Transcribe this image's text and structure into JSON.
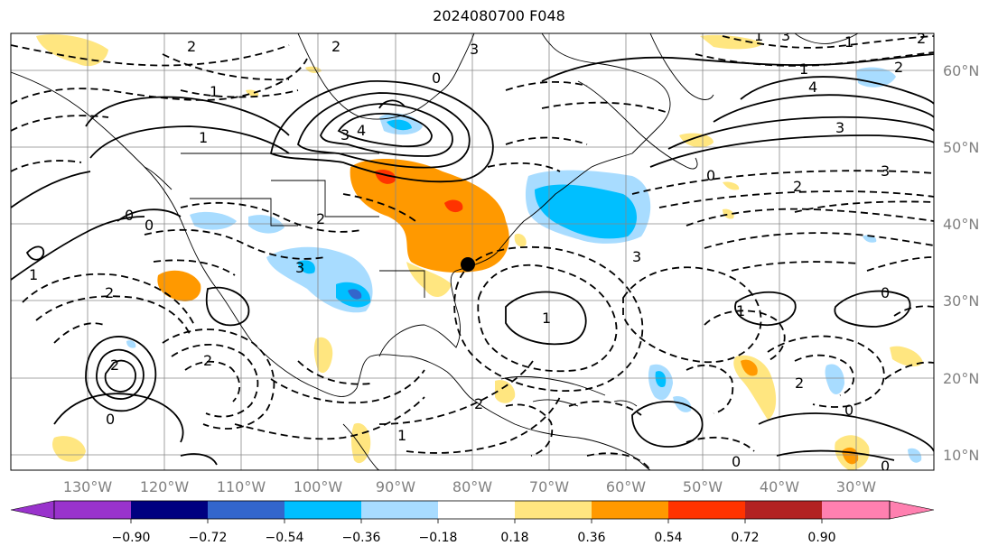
{
  "title": "2024080700 F048",
  "lon_labels": [
    "130°W",
    "120°W",
    "110°W",
    "100°W",
    "90°W",
    "80°W",
    "70°W",
    "60°W",
    "50°W",
    "40°W",
    "30°W"
  ],
  "lat_labels": [
    "60°N",
    "50°N",
    "40°N",
    "30°N",
    "20°N",
    "10°N"
  ],
  "colorbar": {
    "ticks": [
      "−0.90",
      "−0.72",
      "−0.54",
      "−0.36",
      "−0.18",
      "0.18",
      "0.36",
      "0.54",
      "0.72",
      "0.90"
    ],
    "colors": [
      "#9933cc",
      "#000080",
      "#3366cc",
      "#00bfff",
      "#a8dcff",
      "#ffffff",
      "#ffe680",
      "#ff9900",
      "#ff3300",
      "#b22222",
      "#ff80b0"
    ]
  },
  "contour_labels": [
    "2",
    "0",
    "2",
    "1",
    "3",
    "4",
    "1",
    "2",
    "3",
    "2",
    "0",
    "0",
    "1",
    "2",
    "2",
    "1",
    "2",
    "0",
    "3",
    "2",
    "1",
    "4",
    "3",
    "2",
    "0",
    "3",
    "1",
    "2",
    "1",
    "3",
    "0",
    "2",
    "1",
    "1",
    "0",
    "0",
    "3",
    "0"
  ],
  "marker": "station-dot"
}
